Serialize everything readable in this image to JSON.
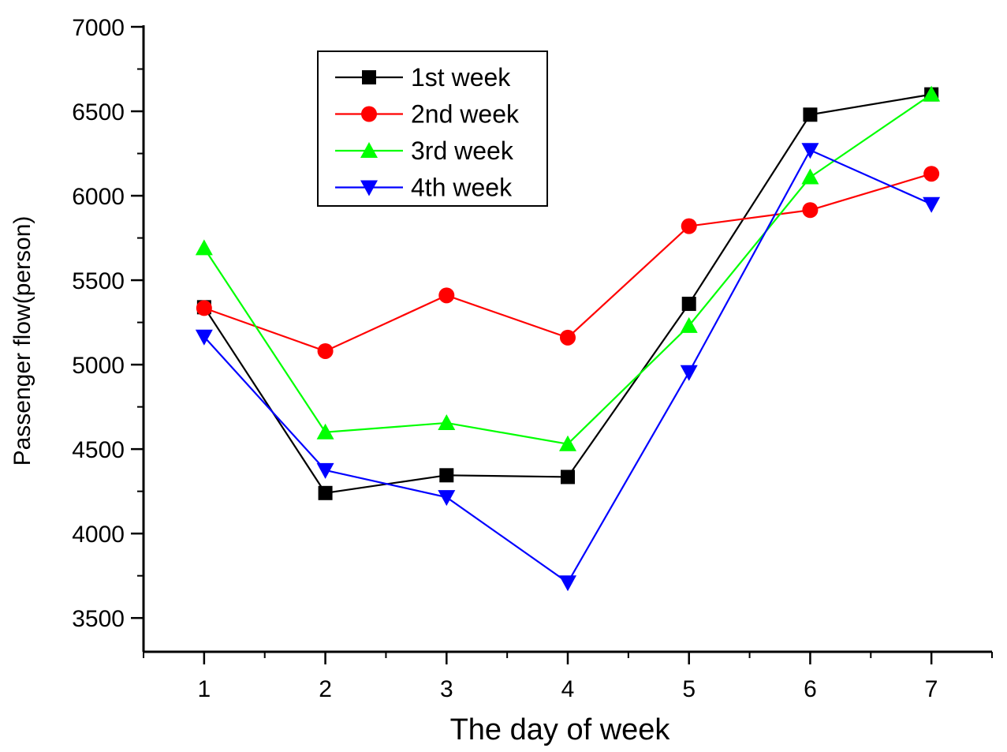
{
  "chart_data": {
    "type": "line",
    "title": "",
    "xlabel": "The day of week",
    "ylabel": "Passenger flow(person)",
    "x": [
      1,
      2,
      3,
      4,
      5,
      6,
      7
    ],
    "xlim": [
      0.5,
      7.5
    ],
    "ylim": [
      3300,
      7000
    ],
    "yticks": [
      3500,
      4000,
      4500,
      5000,
      5500,
      6000,
      6500,
      7000
    ],
    "xticks": [
      1,
      2,
      3,
      4,
      5,
      6,
      7
    ],
    "grid": false,
    "legend_position": "top-center",
    "series": [
      {
        "name": "1st week",
        "color": "#000000",
        "marker": "square",
        "values": [
          5340,
          4240,
          4345,
          4335,
          5360,
          6480,
          6600
        ]
      },
      {
        "name": "2nd week",
        "color": "#ff0000",
        "marker": "circle",
        "values": [
          5335,
          5080,
          5410,
          5160,
          5820,
          5915,
          6130
        ]
      },
      {
        "name": "3rd week",
        "color": "#00ff00",
        "marker": "triangle-up",
        "values": [
          5690,
          4600,
          4655,
          4530,
          5230,
          6110,
          6600
        ]
      },
      {
        "name": "4th week",
        "color": "#0000ff",
        "marker": "triangle-down",
        "values": [
          5165,
          4375,
          4215,
          3710,
          4955,
          6270,
          5950
        ]
      }
    ]
  }
}
